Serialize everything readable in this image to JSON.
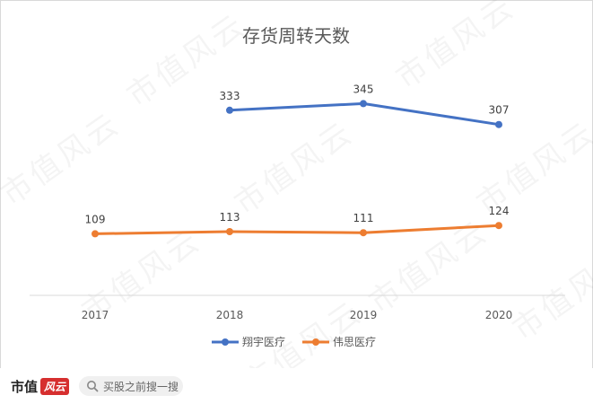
{
  "chart_data": {
    "type": "line",
    "title": "存货周转天数",
    "categories": [
      "2017",
      "2018",
      "2019",
      "2020"
    ],
    "series": [
      {
        "name": "翔宇医疗",
        "color": "#4472C4",
        "values": [
          null,
          333,
          345,
          307
        ]
      },
      {
        "name": "伟思医疗",
        "color": "#ED7D31",
        "values": [
          109,
          113,
          111,
          124
        ]
      }
    ],
    "legend": "bottom",
    "grid": false
  },
  "watermark": "市值风云",
  "footer": {
    "brand_main": "市值",
    "brand_badge": "风云",
    "search_placeholder": "买股之前搜一搜",
    "search_icon": "search-icon"
  }
}
